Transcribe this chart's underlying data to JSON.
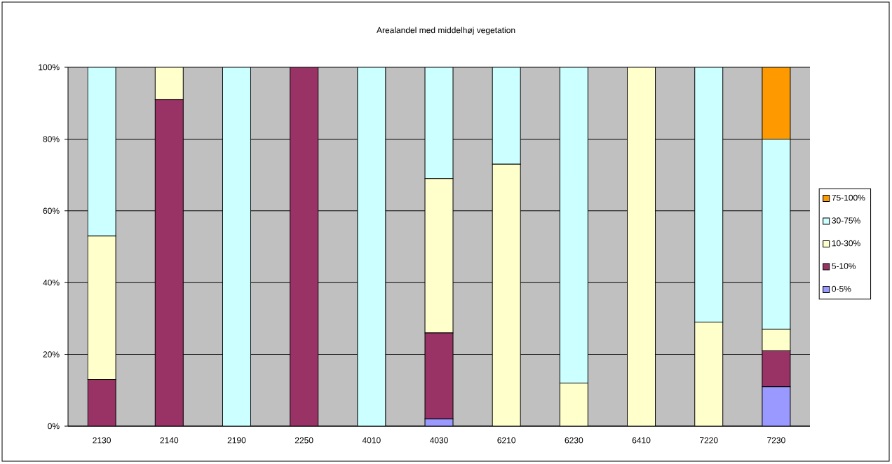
{
  "chart_data": {
    "type": "bar",
    "stacked": true,
    "title": "Arealandel med middelhøj vegetation",
    "categories": [
      "2130",
      "2140",
      "2190",
      "2250",
      "4010",
      "4030",
      "6210",
      "6230",
      "6410",
      "7220",
      "7230"
    ],
    "series": [
      {
        "name": "0-5%",
        "color": "#9999ff",
        "values": [
          0,
          0,
          0,
          0,
          0,
          2,
          0,
          0,
          0,
          0,
          11
        ]
      },
      {
        "name": "5-10%",
        "color": "#993366",
        "values": [
          13,
          91,
          0,
          100,
          0,
          24,
          0,
          0,
          0,
          0,
          10
        ]
      },
      {
        "name": "10-30%",
        "color": "#ffffcc",
        "values": [
          40,
          9,
          0,
          0,
          0,
          43,
          73,
          12,
          100,
          29,
          6
        ]
      },
      {
        "name": "30-75%",
        "color": "#ccffff",
        "values": [
          47,
          0,
          100,
          0,
          100,
          31,
          27,
          88,
          0,
          71,
          53
        ]
      },
      {
        "name": "75-100%",
        "color": "#ff9900",
        "values": [
          0,
          0,
          0,
          0,
          0,
          0,
          0,
          0,
          0,
          0,
          20
        ]
      }
    ],
    "ylim": [
      0,
      100
    ],
    "yticks": [
      {
        "value": 0,
        "label": "0%"
      },
      {
        "value": 20,
        "label": "20%"
      },
      {
        "value": 40,
        "label": "40%"
      },
      {
        "value": 60,
        "label": "60%"
      },
      {
        "value": 80,
        "label": "80%"
      },
      {
        "value": 100,
        "label": "100%"
      }
    ],
    "grid": "y",
    "legend": "right"
  }
}
